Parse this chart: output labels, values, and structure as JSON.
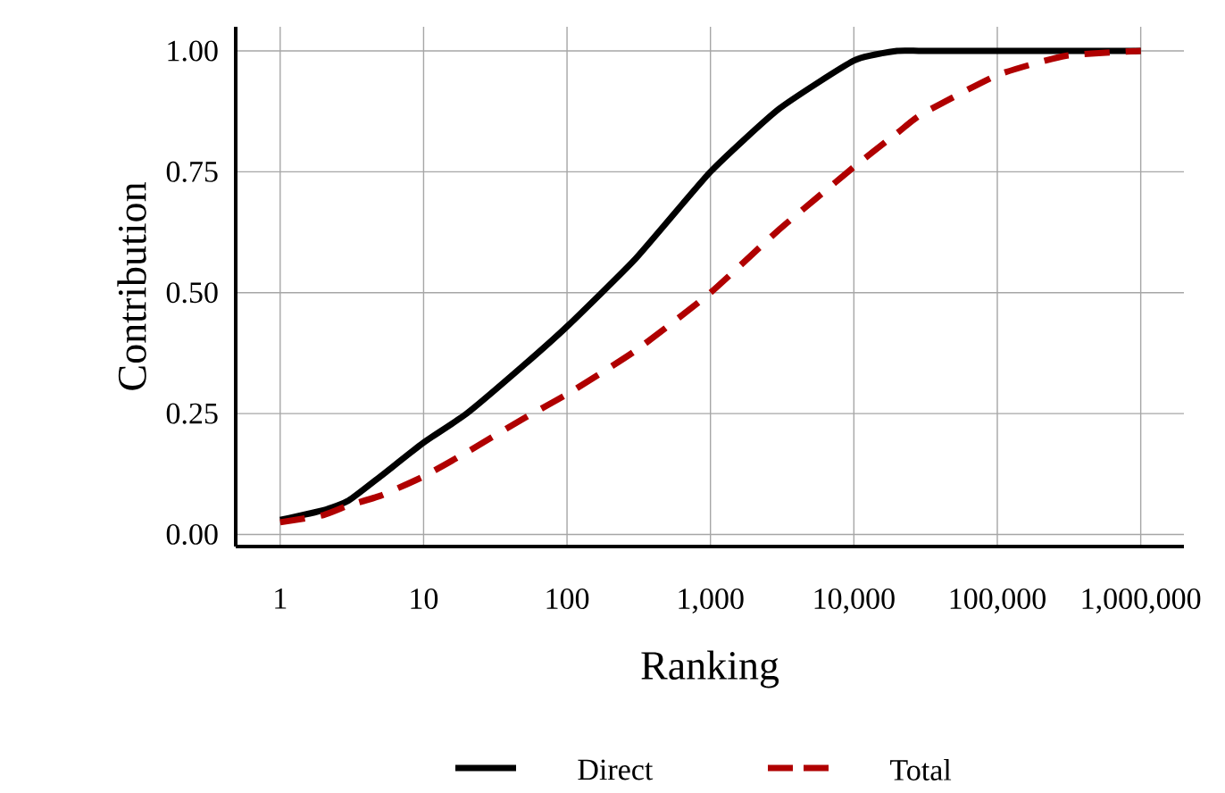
{
  "chart_data": {
    "type": "line",
    "xlabel": "Ranking",
    "ylabel": "Contribution",
    "log": "x",
    "xlim": [
      0.49,
      2000000
    ],
    "ylim": [
      -0.025,
      1.05
    ],
    "xticks": [
      1,
      10,
      100,
      {
        "value": 1000,
        "label": "1,000"
      },
      {
        "value": 10000,
        "label": "10,000"
      },
      {
        "value": 100000,
        "label": "100,000"
      },
      {
        "value": 1000000,
        "label": "1,000,000"
      }
    ],
    "yticks": [
      {
        "value": 0,
        "label": "0.00"
      },
      {
        "value": 0.25,
        "label": "0.25"
      },
      {
        "value": 0.5,
        "label": "0.50"
      },
      {
        "value": 0.75,
        "label": "0.75"
      },
      {
        "value": 1,
        "label": "1.00"
      }
    ],
    "grid": true,
    "legend": "bottom",
    "x": [
      1,
      2,
      3,
      5,
      10,
      20,
      50,
      100,
      300,
      1000,
      3000,
      10000,
      20000,
      30000,
      100000,
      300000,
      1000000
    ],
    "series": [
      {
        "name": "Direct",
        "color": "#000000",
        "line_style": "solid",
        "values": [
          0.03,
          0.05,
          0.07,
          0.12,
          0.19,
          0.25,
          0.35,
          0.43,
          0.57,
          0.75,
          0.88,
          0.98,
          1.0,
          1.0,
          1.0,
          1.0,
          1.0
        ]
      },
      {
        "name": "Total",
        "color": "#b00000",
        "line_style": "dashed",
        "values": [
          0.025,
          0.04,
          0.06,
          0.08,
          0.12,
          0.17,
          0.24,
          0.29,
          0.38,
          0.5,
          0.63,
          0.76,
          0.83,
          0.87,
          0.95,
          0.99,
          1.0
        ]
      }
    ]
  }
}
